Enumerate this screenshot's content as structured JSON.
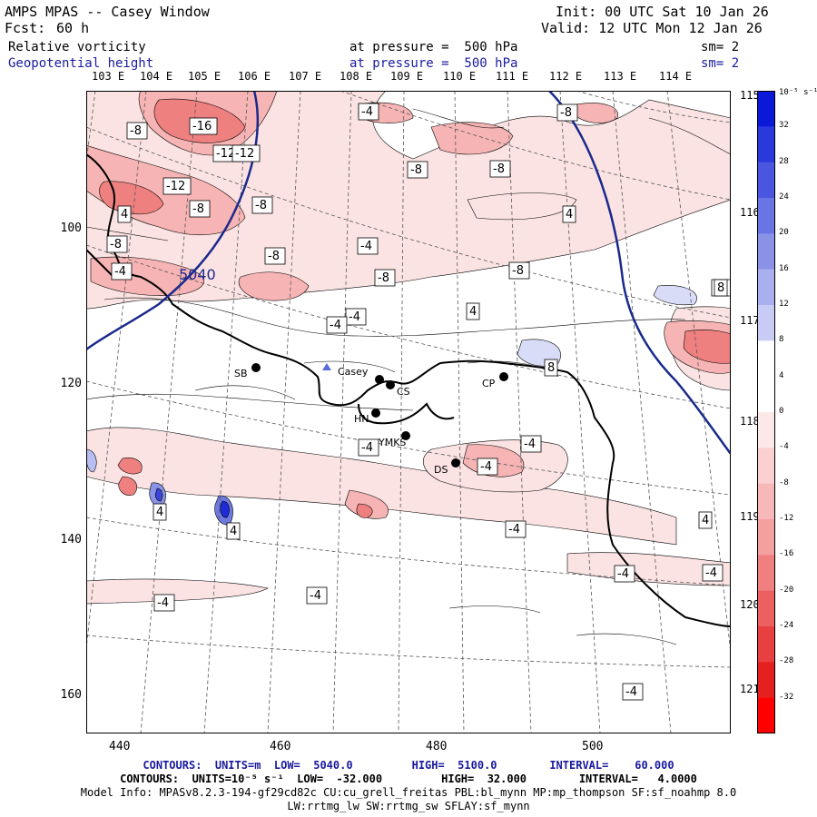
{
  "header": {
    "title": "AMPS MPAS -- Casey Window",
    "fcst_label": "Fcst:",
    "fcst_value": "60 h",
    "init": "Init: 00 UTC Sat 10 Jan 26",
    "valid": "Valid: 12 UTC Mon 12 Jan 26",
    "field1": "Relative vorticity",
    "field1_pressure": "at pressure =  500 hPa",
    "field1_sm": "sm= 2",
    "field2": "Geopotential height",
    "field2_pressure": "at pressure =  500 hPa",
    "field2_sm": "sm= 2"
  },
  "colors": {
    "positive_strong": "#e8323c",
    "positive_light": "#fbe0e0",
    "negative_strong": "#1f2ad8",
    "negative_light": "#d8dcf6",
    "geopotential_contour": "#1a2a8c",
    "coastline": "#000000"
  },
  "top_longitude_labels": [
    "103 E",
    "104 E",
    "105 E",
    "106 E",
    "107 E",
    "108 E",
    "109 E",
    "110 E",
    "111 E",
    "112 E",
    "113 E",
    "114 E"
  ],
  "right_longitude_labels": [
    "115 E",
    "116 E",
    "117 E",
    "118 E",
    "119 E",
    "120 E",
    "121 E"
  ],
  "y_axis_labels": [
    "100",
    "120",
    "140",
    "160"
  ],
  "x_axis_labels": [
    "440",
    "460",
    "480",
    "500"
  ],
  "colorbar": {
    "unit": "10⁻⁵ s⁻¹",
    "labels": [
      "32",
      "28",
      "24",
      "20",
      "16",
      "12",
      "8",
      "4",
      "0",
      "-4",
      "-8",
      "-12",
      "-16",
      "-20",
      "-24",
      "-28",
      "-32"
    ]
  },
  "stations": [
    {
      "label": "SB"
    },
    {
      "label": "Casey"
    },
    {
      "label": "CS"
    },
    {
      "label": "HN"
    },
    {
      "label": "YMKS"
    },
    {
      "label": "DS"
    },
    {
      "label": "CP"
    }
  ],
  "contour_labels": [
    "-16",
    "-12",
    "-12",
    "-12",
    "-8",
    "-8",
    "-8",
    "-8",
    "-8",
    "-8",
    "-8",
    "-8",
    "-8",
    "-8",
    "-4",
    "-4",
    "-4",
    "-4",
    "-4",
    "-4",
    "-4",
    "-4",
    "-4",
    "-4",
    "-4",
    "-4",
    "-4",
    "-4",
    "-4",
    "4",
    "4",
    "4",
    "4",
    "4",
    "4",
    "8",
    "8"
  ],
  "height_label": "5040",
  "footer": {
    "line1": "CONTOURS:  UNITS=m  LOW=  5040.0         HIGH=  5100.0        INTERVAL=    60.000",
    "line2": "CONTOURS:  UNITS=10⁻⁵ s⁻¹  LOW=  -32.000         HIGH=  32.000        INTERVAL=   4.0000",
    "line3": "Model Info: MPASv8.2.3-194-gf29cd82c CU:cu_grell_freitas PBL:bl_mynn MP:mp_thompson SF:sf_noahmp 8.0",
    "line4": "LW:rrtmg_lw SW:rrtmg_sw SFLAY:sf_mynn"
  }
}
